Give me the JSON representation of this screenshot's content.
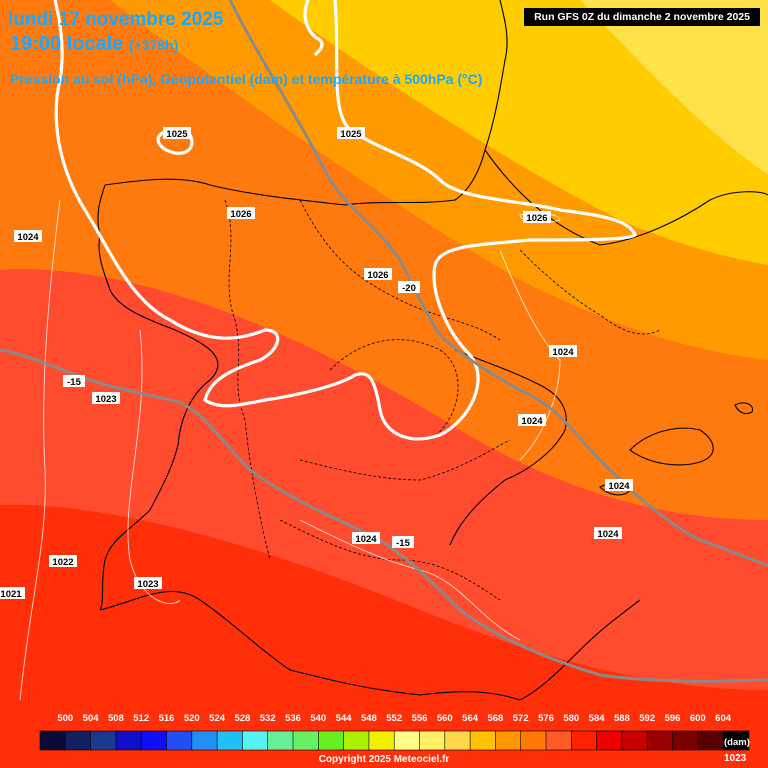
{
  "header": {
    "date": "lundi 17 novembre 2025",
    "time": "19:00 locale",
    "offset": "(+378h)",
    "description": "Pression au sol (hPa), Geopotentiel (dam) et température à 500hPa (°C)",
    "run": "Run GFS 0Z du dimanche 2 novembre 2025"
  },
  "pressure_labels": [
    "1025",
    "1025",
    "1026",
    "1026",
    "1026",
    "1024",
    "1024",
    "1024",
    "1024",
    "1024",
    "1024",
    "1023",
    "1022",
    "1023",
    "1021"
  ],
  "temperature_labels": [
    "-20",
    "-15",
    "-15"
  ],
  "legend": {
    "values": [
      "500",
      "504",
      "508",
      "512",
      "516",
      "520",
      "524",
      "528",
      "532",
      "536",
      "540",
      "544",
      "548",
      "552",
      "556",
      "560",
      "564",
      "568",
      "572",
      "576",
      "580",
      "584",
      "588",
      "592",
      "596",
      "600",
      "604"
    ],
    "colors": [
      "#0a0a3a",
      "#102060",
      "#183a90",
      "#1010c8",
      "#0f0ff5",
      "#1f4ff5",
      "#1f8ff5",
      "#20c0f5",
      "#55f5f5",
      "#66ee99",
      "#66f066",
      "#66f022",
      "#aaf000",
      "#f0f000",
      "#ffff88",
      "#fff066",
      "#ffd84a",
      "#ffc200",
      "#ff9500",
      "#ff7a00",
      "#ff5a2a",
      "#ff2200",
      "#ee0000",
      "#c80000",
      "#9a0000",
      "#7a0000",
      "#580000",
      "#000000"
    ],
    "unit": "(dam)",
    "corner_value": "1023"
  },
  "copyright": "Copyright 2025 Meteociel.fr"
}
